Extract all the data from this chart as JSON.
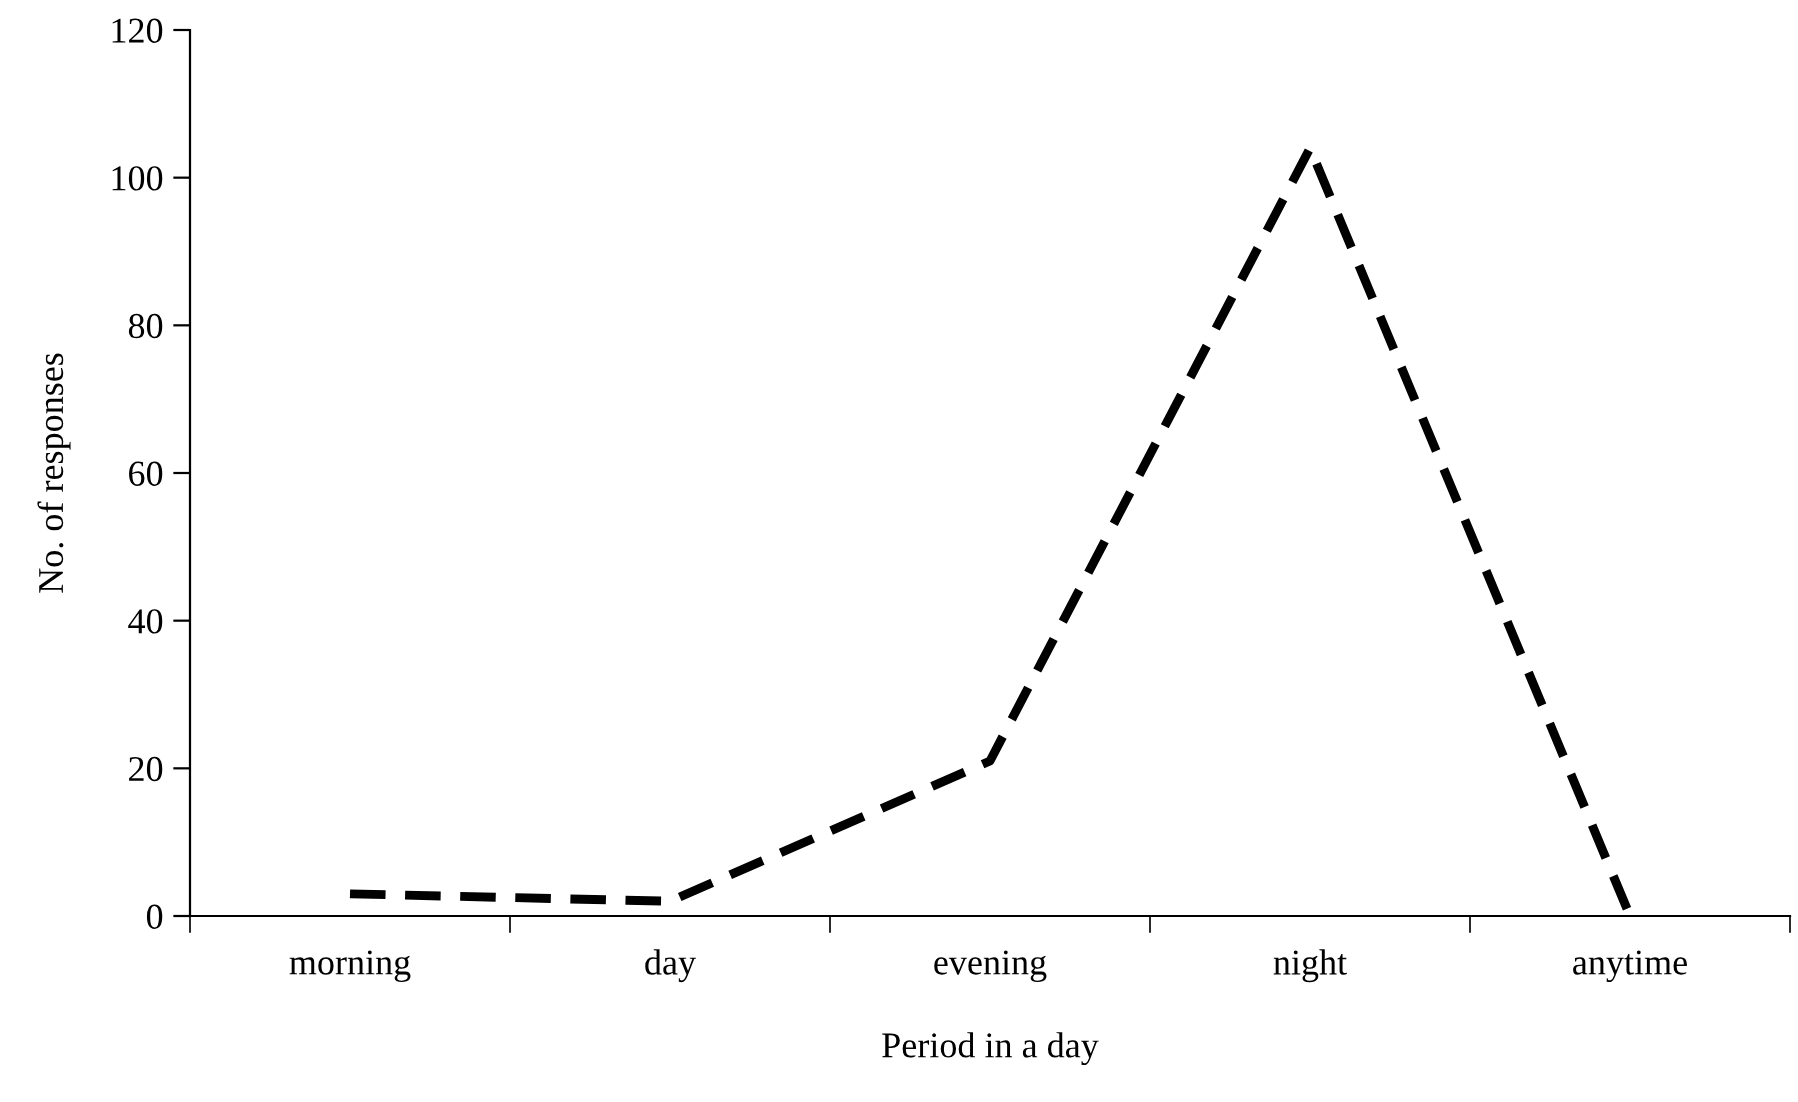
{
  "chart_data": {
    "type": "line",
    "xlabel": "Period in a day",
    "ylabel": "No. of responses",
    "categories": [
      "morning",
      "day",
      "evening",
      "night",
      "anytime"
    ],
    "series": [
      {
        "color": "#000000",
        "values": [
          3,
          2,
          21,
          104,
          0
        ]
      }
    ],
    "ylim": [
      0,
      120
    ],
    "yticks": [
      0,
      20,
      40,
      60,
      80,
      100,
      120
    ],
    "grid": false,
    "legend": false,
    "line_style": "dashed",
    "marker": "none"
  }
}
